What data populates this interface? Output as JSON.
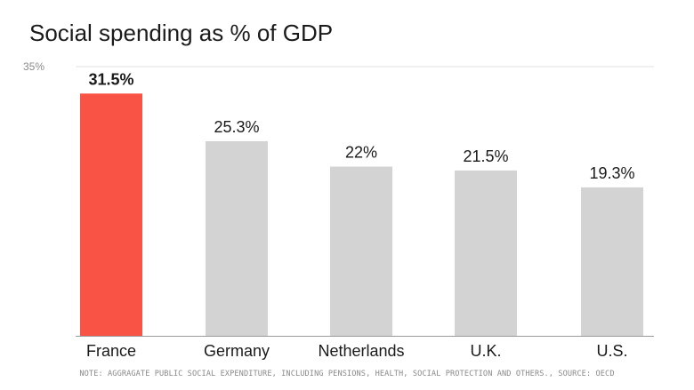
{
  "chart_data": {
    "type": "bar",
    "title": "Social spending as % of GDP",
    "categories": [
      "France",
      "Germany",
      "Netherlands",
      "U.K.",
      "U.S."
    ],
    "values": [
      31.5,
      25.3,
      22,
      21.5,
      19.3
    ],
    "value_labels": [
      "31.5%",
      "25.3%",
      "22%",
      "21.5%",
      "19.3%"
    ],
    "highlight_index": 0,
    "ylim": [
      0,
      35
    ],
    "yticks": [
      {
        "value": 35,
        "label": "35%"
      }
    ],
    "xlabel": "",
    "ylabel": "",
    "grid": false,
    "note": "NOTE: AGGRAGATE PUBLIC SOCIAL EXPENDITURE, INCLUDING PENSIONS, HEALTH, SOCIAL PROTECTION AND OTHERS., SOURCE: OECD",
    "colors": {
      "highlight": "#f95346",
      "default": "#d3d3d3",
      "axis": "#9a9a9a",
      "text": "#1a1a1a",
      "muted": "#8a8a8a"
    }
  }
}
